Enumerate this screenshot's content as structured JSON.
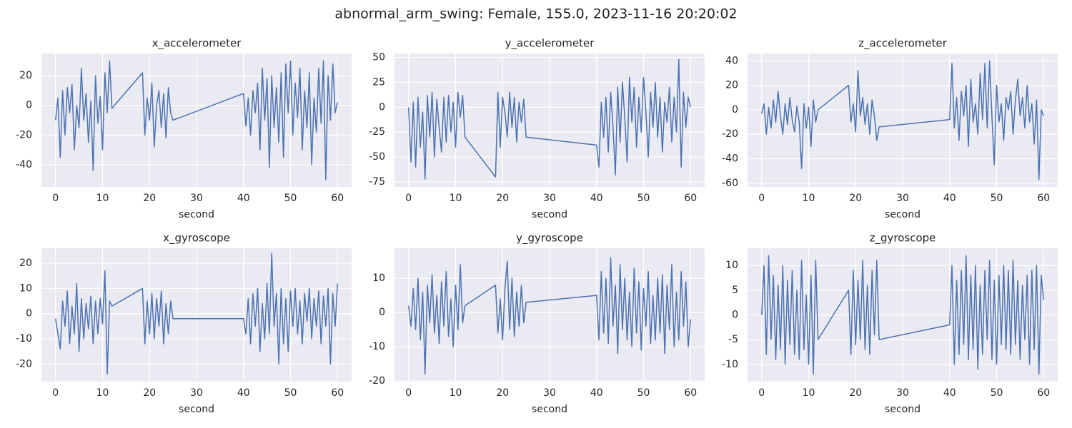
{
  "title": "abnormal_arm_swing: Female, 155.0, 2023-11-16 20:20:02",
  "chart_data": [
    {
      "type": "line",
      "title": "x_accelerometer",
      "xlabel": "second",
      "color": "#4c72b0",
      "grid": true,
      "xlim": [
        -3,
        63
      ],
      "xticks": [
        0,
        10,
        20,
        30,
        40,
        50,
        60
      ],
      "ylim": [
        -55,
        35
      ],
      "yticks": [
        -40,
        -20,
        0,
        20
      ],
      "x": [
        0,
        0.5,
        1,
        1.5,
        2,
        2.5,
        3,
        3.5,
        4,
        4.5,
        5,
        5.5,
        6,
        6.5,
        7,
        7.5,
        8,
        8.5,
        9,
        9.5,
        10,
        10.5,
        11,
        11.5,
        12,
        18.5,
        19,
        19.5,
        20,
        20.5,
        21,
        21.5,
        22,
        22.5,
        23,
        23.5,
        24,
        24.5,
        25,
        40,
        40.5,
        41,
        41.5,
        42,
        42.5,
        43,
        43.5,
        44,
        44.5,
        45,
        45.5,
        46,
        46.5,
        47,
        47.5,
        48,
        48.5,
        49,
        49.5,
        50,
        50.5,
        51,
        51.5,
        52,
        52.5,
        53,
        53.5,
        54,
        54.5,
        55,
        55.5,
        56,
        56.5,
        57,
        57.5,
        58,
        58.5,
        59,
        59.5,
        60
      ],
      "values": [
        -10,
        5,
        -35,
        10,
        -20,
        12,
        -5,
        14,
        -30,
        0,
        -15,
        25,
        -10,
        8,
        -25,
        3,
        -44,
        20,
        -12,
        6,
        -30,
        22,
        -5,
        30,
        -2,
        22,
        -20,
        5,
        -10,
        15,
        -28,
        0,
        10,
        -15,
        8,
        -22,
        12,
        -5,
        -10,
        8,
        -14,
        5,
        -20,
        10,
        -5,
        15,
        -30,
        25,
        -10,
        18,
        -42,
        20,
        -15,
        12,
        -25,
        22,
        -35,
        28,
        -5,
        30,
        -20,
        15,
        -8,
        25,
        -30,
        10,
        -15,
        22,
        -40,
        5,
        -18,
        25,
        -12,
        30,
        -50,
        20,
        -10,
        28,
        -5,
        2
      ]
    },
    {
      "type": "line",
      "title": "y_accelerometer",
      "xlabel": "second",
      "color": "#4c72b0",
      "grid": true,
      "xlim": [
        -3,
        63
      ],
      "xticks": [
        0,
        10,
        20,
        30,
        40,
        50,
        60
      ],
      "ylim": [
        -80,
        54
      ],
      "yticks": [
        -75,
        -50,
        -25,
        0,
        25,
        50
      ],
      "x": [
        0,
        0.5,
        1,
        1.5,
        2,
        2.5,
        3,
        3.5,
        4,
        4.5,
        5,
        5.5,
        6,
        6.5,
        7,
        7.5,
        8,
        8.5,
        9,
        9.5,
        10,
        10.5,
        11,
        11.5,
        12,
        18.5,
        19,
        19.5,
        20,
        20.5,
        21,
        21.5,
        22,
        22.5,
        23,
        23.5,
        24,
        24.5,
        25,
        40,
        40.5,
        41,
        41.5,
        42,
        42.5,
        43,
        43.5,
        44,
        44.5,
        45,
        45.5,
        46,
        46.5,
        47,
        47.5,
        48,
        48.5,
        49,
        49.5,
        50,
        50.5,
        51,
        51.5,
        52,
        52.5,
        53,
        53.5,
        54,
        54.5,
        55,
        55.5,
        56,
        56.5,
        57,
        57.5,
        58,
        58.5,
        59,
        59.5,
        60
      ],
      "values": [
        0,
        -55,
        5,
        -60,
        10,
        -40,
        -5,
        -72,
        12,
        -30,
        15,
        -50,
        8,
        -20,
        -45,
        10,
        -35,
        12,
        -25,
        5,
        -40,
        15,
        -10,
        12,
        -30,
        -70,
        15,
        -40,
        10,
        -5,
        -30,
        15,
        -20,
        10,
        -35,
        5,
        -15,
        8,
        -30,
        -38,
        -60,
        5,
        -30,
        10,
        -45,
        15,
        -20,
        -68,
        20,
        -35,
        25,
        -10,
        -55,
        30,
        -15,
        20,
        -40,
        10,
        -25,
        30,
        -5,
        -50,
        15,
        -20,
        25,
        -30,
        10,
        -45,
        5,
        -15,
        20,
        -35,
        10,
        -25,
        48,
        -60,
        15,
        -20,
        10,
        0
      ]
    },
    {
      "type": "line",
      "title": "z_accelerometer",
      "xlabel": "second",
      "color": "#4c72b0",
      "grid": true,
      "xlim": [
        -3,
        63
      ],
      "xticks": [
        0,
        10,
        20,
        30,
        40,
        50,
        60
      ],
      "ylim": [
        -63,
        46
      ],
      "yticks": [
        -60,
        -40,
        -20,
        0,
        20,
        40
      ],
      "x": [
        0,
        0.5,
        1,
        1.5,
        2,
        2.5,
        3,
        3.5,
        4,
        4.5,
        5,
        5.5,
        6,
        6.5,
        7,
        7.5,
        8,
        8.5,
        9,
        9.5,
        10,
        10.5,
        11,
        11.5,
        12,
        18.5,
        19,
        19.5,
        20,
        20.5,
        21,
        21.5,
        22,
        22.5,
        23,
        23.5,
        24,
        24.5,
        25,
        40,
        40.5,
        41,
        41.5,
        42,
        42.5,
        43,
        43.5,
        44,
        44.5,
        45,
        45.5,
        46,
        46.5,
        47,
        47.5,
        48,
        48.5,
        49,
        49.5,
        50,
        50.5,
        51,
        51.5,
        52,
        52.5,
        53,
        53.5,
        54,
        54.5,
        55,
        55.5,
        56,
        56.5,
        57,
        57.5,
        58,
        58.5,
        59,
        59.5,
        60
      ],
      "values": [
        -3,
        5,
        -20,
        2,
        -15,
        8,
        -10,
        15,
        -5,
        -20,
        5,
        -12,
        10,
        -8,
        -18,
        3,
        -10,
        -48,
        5,
        -15,
        2,
        -30,
        8,
        -10,
        0,
        20,
        -10,
        5,
        -18,
        32,
        -5,
        10,
        -12,
        5,
        -20,
        8,
        -5,
        -25,
        -14,
        -8,
        38,
        -15,
        10,
        -25,
        15,
        -5,
        20,
        -30,
        25,
        -10,
        5,
        -20,
        30,
        -8,
        38,
        -15,
        40,
        -5,
        -45,
        20,
        -10,
        5,
        -25,
        10,
        0,
        15,
        -20,
        8,
        25,
        -5,
        10,
        -15,
        20,
        -10,
        5,
        -28,
        8,
        -57,
        0,
        -5
      ]
    },
    {
      "type": "line",
      "title": "x_gyroscope",
      "xlabel": "second",
      "color": "#4c72b0",
      "grid": true,
      "xlim": [
        -3,
        63
      ],
      "xticks": [
        0,
        10,
        20,
        30,
        40,
        50,
        60
      ],
      "ylim": [
        -27,
        26
      ],
      "yticks": [
        -20,
        -10,
        0,
        10,
        20
      ],
      "x": [
        0,
        0.5,
        1,
        1.5,
        2,
        2.5,
        3,
        3.5,
        4,
        4.5,
        5,
        5.5,
        6,
        6.5,
        7,
        7.5,
        8,
        8.5,
        9,
        9.5,
        10,
        10.5,
        11,
        11.5,
        12,
        18.5,
        19,
        19.5,
        20,
        20.5,
        21,
        21.5,
        22,
        22.5,
        23,
        23.5,
        24,
        24.5,
        25,
        40,
        40.5,
        41,
        41.5,
        42,
        42.5,
        43,
        43.5,
        44,
        44.5,
        45,
        45.5,
        46,
        46.5,
        47,
        47.5,
        48,
        48.5,
        49,
        49.5,
        50,
        50.5,
        51,
        51.5,
        52,
        52.5,
        53,
        53.5,
        54,
        54.5,
        55,
        55.5,
        56,
        56.5,
        57,
        57.5,
        58,
        58.5,
        59,
        59.5,
        60
      ],
      "values": [
        -2,
        -8,
        -14,
        5,
        -5,
        9,
        -12,
        3,
        -8,
        12,
        -15,
        6,
        -10,
        4,
        -6,
        7,
        -12,
        5,
        -8,
        6,
        -4,
        17,
        -24,
        5,
        3,
        10,
        -12,
        5,
        -8,
        8,
        -10,
        6,
        -5,
        9,
        -12,
        4,
        -8,
        5,
        -2,
        -2,
        -8,
        6,
        -12,
        8,
        -5,
        10,
        -15,
        4,
        -10,
        12,
        -8,
        24,
        -5,
        8,
        -20,
        10,
        -12,
        6,
        -15,
        9,
        -5,
        10,
        -8,
        5,
        -12,
        8,
        -3,
        10,
        -10,
        6,
        -5,
        9,
        -12,
        7,
        -5,
        10,
        -20,
        8,
        -5,
        12
      ]
    },
    {
      "type": "line",
      "title": "y_gyroscope",
      "xlabel": "second",
      "color": "#4c72b0",
      "grid": true,
      "xlim": [
        -3,
        63
      ],
      "xticks": [
        0,
        10,
        20,
        30,
        40,
        50,
        60
      ],
      "ylim": [
        -20.2,
        18.8
      ],
      "yticks": [
        -20,
        -10,
        0,
        10
      ],
      "x": [
        0,
        0.5,
        1,
        1.5,
        2,
        2.5,
        3,
        3.5,
        4,
        4.5,
        5,
        5.5,
        6,
        6.5,
        7,
        7.5,
        8,
        8.5,
        9,
        9.5,
        10,
        10.5,
        11,
        11.5,
        12,
        18.5,
        19,
        19.5,
        20,
        20.5,
        21,
        21.5,
        22,
        22.5,
        23,
        23.5,
        24,
        24.5,
        25,
        40,
        40.5,
        41,
        41.5,
        42,
        42.5,
        43,
        43.5,
        44,
        44.5,
        45,
        45.5,
        46,
        46.5,
        47,
        47.5,
        48,
        48.5,
        49,
        49.5,
        50,
        50.5,
        51,
        51.5,
        52,
        52.5,
        53,
        53.5,
        54,
        54.5,
        55,
        55.5,
        56,
        56.5,
        57,
        57.5,
        58,
        58.5,
        59,
        59.5,
        60
      ],
      "values": [
        2,
        -4,
        7,
        -5,
        10,
        -8,
        6,
        -18,
        8,
        -3,
        11,
        -6,
        5,
        -9,
        9,
        -4,
        12,
        -7,
        4,
        -10,
        8,
        -5,
        14,
        -3,
        2,
        8,
        -6,
        4,
        -8,
        7,
        15,
        -5,
        10,
        -7,
        6,
        -4,
        8,
        -3,
        3,
        5,
        -8,
        12,
        -6,
        10,
        -9,
        16,
        -4,
        8,
        -12,
        14,
        -5,
        10,
        -8,
        6,
        -10,
        13,
        -6,
        9,
        -11,
        7,
        -4,
        12,
        -9,
        5,
        -8,
        10,
        -6,
        11,
        -12,
        8,
        -5,
        14,
        -10,
        6,
        -8,
        12,
        -4,
        9,
        -10,
        -2
      ]
    },
    {
      "type": "line",
      "title": "z_gyroscope",
      "xlabel": "second",
      "color": "#4c72b0",
      "grid": true,
      "xlim": [
        -3,
        63
      ],
      "xticks": [
        0,
        10,
        20,
        30,
        40,
        50,
        60
      ],
      "ylim": [
        -13.5,
        13.5
      ],
      "yticks": [
        -10,
        -5,
        0,
        5,
        10
      ],
      "x": [
        0,
        0.5,
        1,
        1.5,
        2,
        2.5,
        3,
        3.5,
        4,
        4.5,
        5,
        5.5,
        6,
        6.5,
        7,
        7.5,
        8,
        8.5,
        9,
        9.5,
        10,
        10.5,
        11,
        11.5,
        12,
        18.5,
        19,
        19.5,
        20,
        20.5,
        21,
        21.5,
        22,
        22.5,
        23,
        23.5,
        24,
        24.5,
        25,
        40,
        40.5,
        41,
        41.5,
        42,
        42.5,
        43,
        43.5,
        44,
        44.5,
        45,
        45.5,
        46,
        46.5,
        47,
        47.5,
        48,
        48.5,
        49,
        49.5,
        50,
        50.5,
        51,
        51.5,
        52,
        52.5,
        53,
        53.5,
        54,
        54.5,
        55,
        55.5,
        56,
        56.5,
        57,
        57.5,
        58,
        58.5,
        59,
        59.5,
        60
      ],
      "values": [
        0,
        10,
        -8,
        12,
        -5,
        8,
        -9,
        6,
        -7,
        10,
        -10,
        7,
        -6,
        9,
        -8,
        5,
        -9,
        11,
        -7,
        4,
        -10,
        8,
        -12,
        11,
        -5,
        5,
        -8,
        9,
        -6,
        7,
        -5,
        11,
        -7,
        6,
        -8,
        9,
        -4,
        11,
        -5,
        -2,
        10,
        -10,
        7,
        -8,
        9,
        -6,
        12,
        -9,
        8,
        -7,
        10,
        -11,
        6,
        -8,
        9,
        -5,
        11,
        -9,
        7,
        -10,
        8,
        -6,
        10,
        -7,
        9,
        -8,
        11,
        -6,
        7,
        -9,
        6,
        -5,
        8,
        -10,
        9,
        -7,
        10,
        -12,
        8,
        3
      ]
    }
  ]
}
